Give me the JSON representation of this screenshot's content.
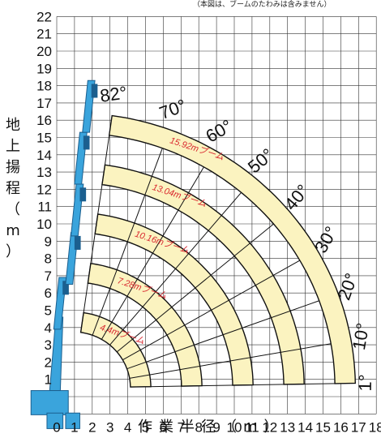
{
  "note": "（本図は、ブームのたわみは含みません）",
  "y_axis": {
    "label_chars": [
      "地",
      "上",
      "揚",
      "程",
      "（",
      "m",
      "）"
    ],
    "ticks": [
      "22",
      "21",
      "20",
      "19",
      "18",
      "17",
      "16",
      "15",
      "14",
      "13",
      "12",
      "11",
      "10",
      "9",
      "8",
      "7",
      "6",
      "5",
      "4",
      "3",
      "2",
      "1"
    ]
  },
  "x_axis": {
    "label": "作業半径（m）",
    "ticks": [
      "0",
      "1",
      "2",
      "3",
      "4",
      "5",
      "6",
      "7",
      "8",
      "9",
      "10",
      "11",
      "12",
      "13",
      "14",
      "15",
      "16",
      "17",
      "18"
    ]
  },
  "chart_data": {
    "type": "line",
    "title": "",
    "xlabel": "作業半径（m）",
    "ylabel": "地上揚程（m）",
    "xlim": [
      0,
      18
    ],
    "ylim": [
      -1,
      22
    ],
    "pivot": [
      0.9,
      0.5
    ],
    "booms": [
      {
        "label": "4.4mブーム",
        "length": 4.4,
        "tip": [
          0.28,
          6.9
        ]
      },
      {
        "label": "7.28mブーム",
        "length": 7.28,
        "tip": [
          0.95,
          9.5
        ]
      },
      {
        "label": "10.16mブーム",
        "length": 10.16,
        "tip": [
          1.25,
          12.3
        ]
      },
      {
        "label": "13.04mブーム",
        "length": 13.04,
        "tip": [
          1.45,
          15.3
        ]
      },
      {
        "label": "15.92mブーム",
        "length": 15.92,
        "tip": [
          1.9,
          18.3
        ]
      }
    ],
    "angles": [
      {
        "label": "82°",
        "deg": 82
      },
      {
        "label": "70°",
        "deg": 70
      },
      {
        "label": "60°",
        "deg": 60
      },
      {
        "label": "50°",
        "deg": 50
      },
      {
        "label": "40°",
        "deg": 40
      },
      {
        "label": "30°",
        "deg": 30
      },
      {
        "label": "20°",
        "deg": 20
      },
      {
        "label": "10°",
        "deg": 10
      },
      {
        "label": "1°",
        "deg": 1
      }
    ],
    "grid": true
  },
  "colors": {
    "band_fill": "#fbf3c0",
    "band_stroke": "#111111",
    "crane_blue": "#3aa4dc",
    "crane_dark": "#1b5f8f",
    "boom_label": "#d9272e",
    "grid": "#333333"
  }
}
